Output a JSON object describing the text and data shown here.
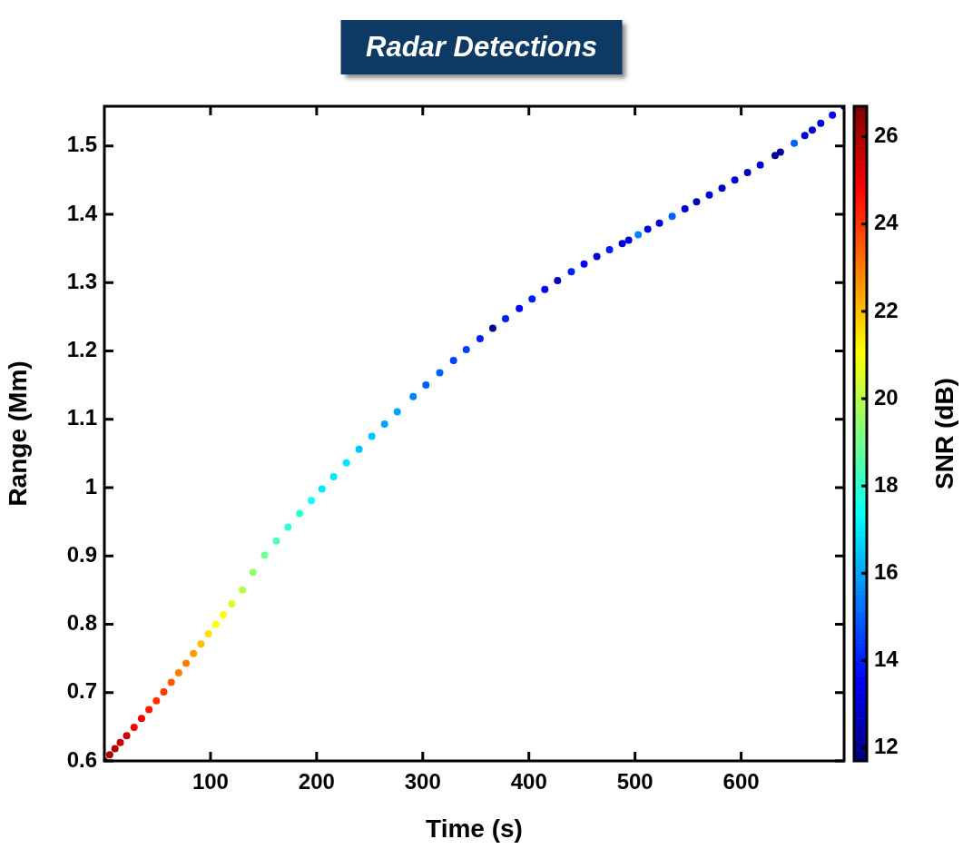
{
  "chart_data": {
    "type": "scatter",
    "title": "Radar Detections",
    "xlabel": "Time (s)",
    "ylabel": "Range (Mm)",
    "clabel": "SNR (dB)",
    "x": [
      0,
      5,
      10,
      15,
      21,
      28,
      35,
      42,
      49,
      56,
      63,
      70,
      77,
      84,
      91,
      98,
      105,
      112,
      120,
      130,
      140,
      151,
      162,
      173,
      184,
      195,
      205,
      216,
      228,
      240,
      252,
      264,
      276,
      291,
      303,
      316,
      329,
      341,
      354,
      366,
      378,
      391,
      403,
      415,
      427,
      440,
      452,
      464,
      476,
      488,
      494,
      503,
      512,
      523,
      535,
      547,
      558,
      570,
      582,
      594,
      606,
      618,
      632,
      637,
      650,
      660,
      667,
      675,
      686,
      697
    ],
    "values": [
      0.6,
      0.609,
      0.618,
      0.627,
      0.637,
      0.649,
      0.662,
      0.675,
      0.688,
      0.701,
      0.715,
      0.729,
      0.743,
      0.757,
      0.771,
      0.786,
      0.8,
      0.814,
      0.83,
      0.85,
      0.876,
      0.901,
      0.922,
      0.942,
      0.962,
      0.981,
      0.998,
      1.016,
      1.036,
      1.056,
      1.075,
      1.093,
      1.111,
      1.133,
      1.15,
      1.168,
      1.186,
      1.202,
      1.218,
      1.233,
      1.247,
      1.262,
      1.276,
      1.29,
      1.303,
      1.316,
      1.327,
      1.338,
      1.348,
      1.357,
      1.362,
      1.37,
      1.378,
      1.387,
      1.397,
      1.408,
      1.418,
      1.428,
      1.438,
      1.45,
      1.461,
      1.472,
      1.486,
      1.491,
      1.504,
      1.515,
      1.523,
      1.533,
      1.545,
      1.558
    ],
    "cvalues": [
      26.5,
      26,
      26,
      25.5,
      25.5,
      25,
      25,
      24.5,
      24,
      24,
      23.5,
      23,
      23,
      22.5,
      22,
      21.5,
      21,
      21,
      20.5,
      20,
      19.5,
      19,
      18.5,
      18,
      18,
      17.5,
      17,
      17,
      17,
      16.5,
      16.5,
      16,
      16,
      15.5,
      15,
      15,
      14.5,
      14.5,
      14,
      12,
      14,
      13.5,
      14,
      13.5,
      12.5,
      14,
      13.5,
      13,
      14,
      13,
      13,
      15.5,
      13,
      13,
      15,
      13,
      12.5,
      13,
      12.5,
      13,
      12.5,
      13,
      12,
      12,
      15,
      13,
      13,
      13,
      13.5,
      13
    ],
    "xlim": [
      0,
      697
    ],
    "xticks": [
      100,
      200,
      300,
      400,
      500,
      600
    ],
    "ylim": [
      0.6,
      1.558
    ],
    "yticks": [
      0.6,
      0.7,
      0.8,
      0.9,
      1,
      1.1,
      1.2,
      1.3,
      1.4,
      1.5
    ],
    "clim": [
      11.7,
      26.7
    ],
    "cticks": [
      12,
      14,
      16,
      18,
      20,
      22,
      24,
      26
    ],
    "marker": "circle",
    "grid": false,
    "legend": false
  }
}
